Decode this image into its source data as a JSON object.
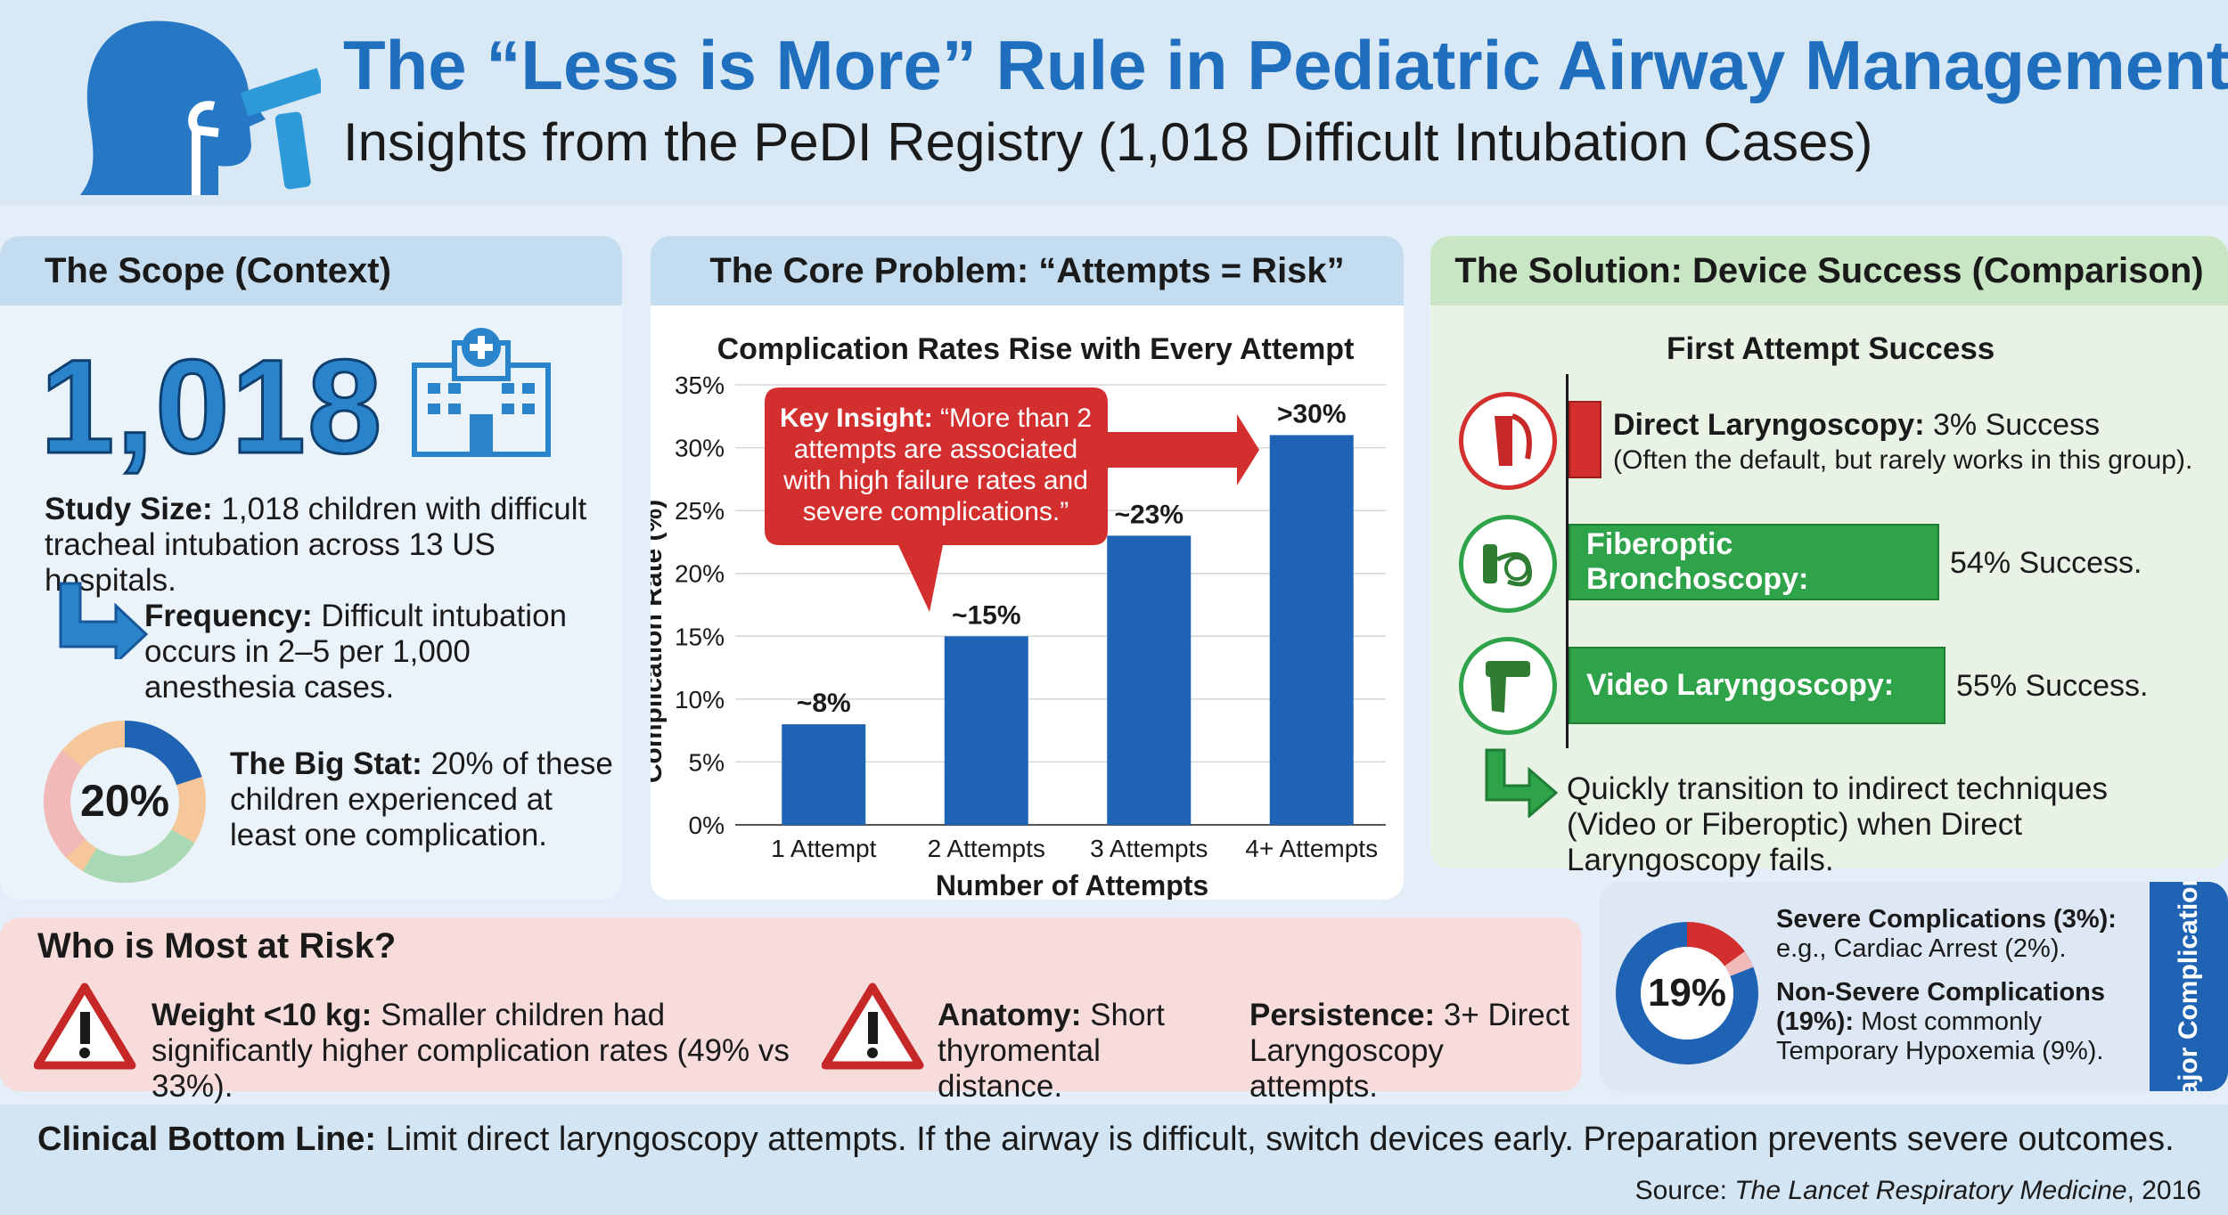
{
  "header": {
    "title": "The “Less is More” Rule in Pediatric Airway Management",
    "subtitle": "Insights from the PeDI Registry (1,018 Difficult Intubation Cases)"
  },
  "scope": {
    "heading": "The Scope (Context)",
    "big_number": "1,018",
    "study_label": "Study Size:",
    "study_text": "1,018 children with difficult tracheal intubation across 13 US hospitals.",
    "frequency_label": "Frequency:",
    "frequency_text": "Difficult intubation occurs in 2–5 per 1,000 anesthesia cases.",
    "donut_value": "20%",
    "donut_fraction": 0.2,
    "bigstat_label": "The Big Stat:",
    "bigstat_text": "20% of these children experienced at least one complication."
  },
  "problem": {
    "heading": "The Core Problem: “Attempts = Risk”",
    "insight_label": "Key Insight:",
    "insight_text": "“More than 2 attempts are associated with high failure rates and severe complications.”"
  },
  "chart_data": {
    "type": "bar",
    "title": "Complication Rates Rise with Every Attempt",
    "xlabel": "Number of Attempts",
    "ylabel": "Complication Rate (%)",
    "categories": [
      "1 Attempt",
      "2 Attempts",
      "3 Attempts",
      "4+ Attempts"
    ],
    "values": [
      8,
      15,
      23,
      31
    ],
    "data_labels": [
      "~8%",
      "~15%",
      "~23%",
      ">30%"
    ],
    "ylim": [
      0,
      35
    ],
    "yticks": [
      0,
      5,
      10,
      15,
      20,
      25,
      30,
      35
    ],
    "ytick_labels": [
      "0%",
      "5%",
      "10%",
      "15%",
      "20%",
      "25%",
      "30%",
      "35%"
    ],
    "grid": true
  },
  "solution": {
    "heading": "The Solution: Device Success (Comparison)",
    "chart_title": "First Attempt Success",
    "devices": [
      {
        "name": "Direct Laryngoscopy:",
        "success": "3% Success",
        "value": 3,
        "note": "(Often the default, but rarely works in this group).",
        "color": "#d32f2f"
      },
      {
        "name": "Fiberoptic Bronchoscopy:",
        "success": "54% Success.",
        "value": 54,
        "color": "#2fa34a"
      },
      {
        "name": "Video Laryngoscopy:",
        "success": "55% Success.",
        "value": 55,
        "color": "#2fa34a"
      }
    ],
    "tip": "Quickly transition to indirect techniques (Video or Fiberoptic) when Direct Laryngoscopy fails."
  },
  "risk": {
    "heading": "Who is Most at Risk?",
    "weight_label": "Weight <10 kg:",
    "weight_text": "Smaller children had significantly higher complication rates (49% vs 33%).",
    "anatomy_label": "Anatomy:",
    "anatomy_text": "Short thyromental distance.",
    "persistence_label": "Persistence:",
    "persistence_text": "3+ Direct Laryngoscopy attempts."
  },
  "major": {
    "donut_value": "19%",
    "severe_fraction": 0.03,
    "nonsevere_fraction": 0.19,
    "severe_label": "Severe Complications (3%):",
    "severe_text": "e.g., Cardiac Arrest (2%).",
    "nonsevere_label": "Non-Severe Complications (19%):",
    "nonsevere_text": "Most commonly Temporary Hypoxemia (9%).",
    "side_label": "Major Complications"
  },
  "bottom": {
    "label": "Clinical Bottom Line:",
    "text": "Limit direct laryngoscopy attempts. If the airway is difficult, switch devices early. Preparation prevents severe outcomes.",
    "source_prefix": "Source:",
    "source_journal": "The Lancet Respiratory Medicine",
    "source_year": ", 2016"
  },
  "colors": {
    "title_blue": "#1f6fbe",
    "bar_blue": "#1f64b4",
    "insight_red": "#d32f2f",
    "success_green": "#2fa34a"
  }
}
